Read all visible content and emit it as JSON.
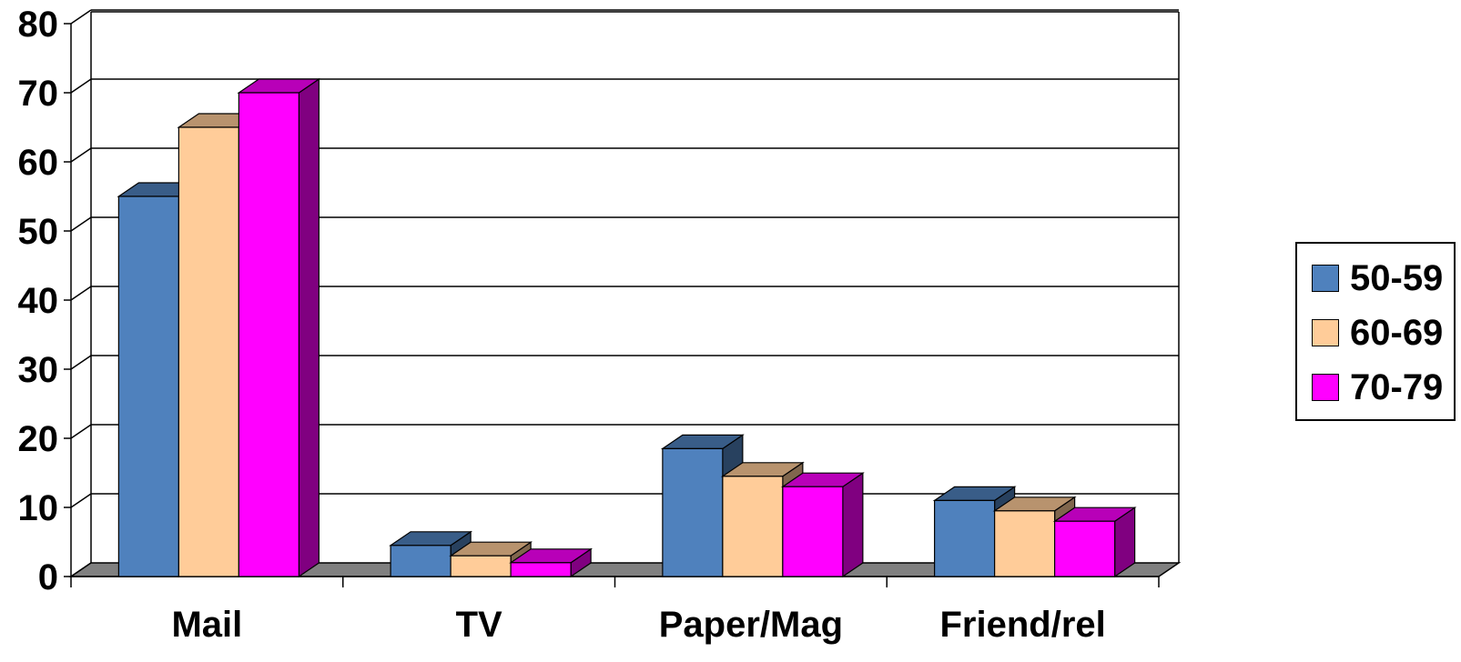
{
  "chart_data": {
    "type": "bar",
    "title": "",
    "xlabel": "",
    "ylabel": "",
    "ylim": [
      0,
      80
    ],
    "yticks": [
      "0",
      "10",
      "20",
      "30",
      "40",
      "50",
      "60",
      "70",
      "80"
    ],
    "categories": [
      "Mail",
      "TV",
      "Paper/Mag",
      "Friend/rel"
    ],
    "series": [
      {
        "name": "50-59",
        "values": [
          55,
          4.5,
          18.5,
          11
        ],
        "color": "#4F81BD"
      },
      {
        "name": "60-69",
        "values": [
          65,
          3,
          14.5,
          9.5
        ],
        "color": "#FFCC99"
      },
      {
        "name": "70-79",
        "values": [
          70,
          2,
          13,
          8
        ],
        "color": "#FF00FF"
      }
    ],
    "grid": true,
    "legend_position": "right",
    "style": "3d-clustered-column"
  }
}
